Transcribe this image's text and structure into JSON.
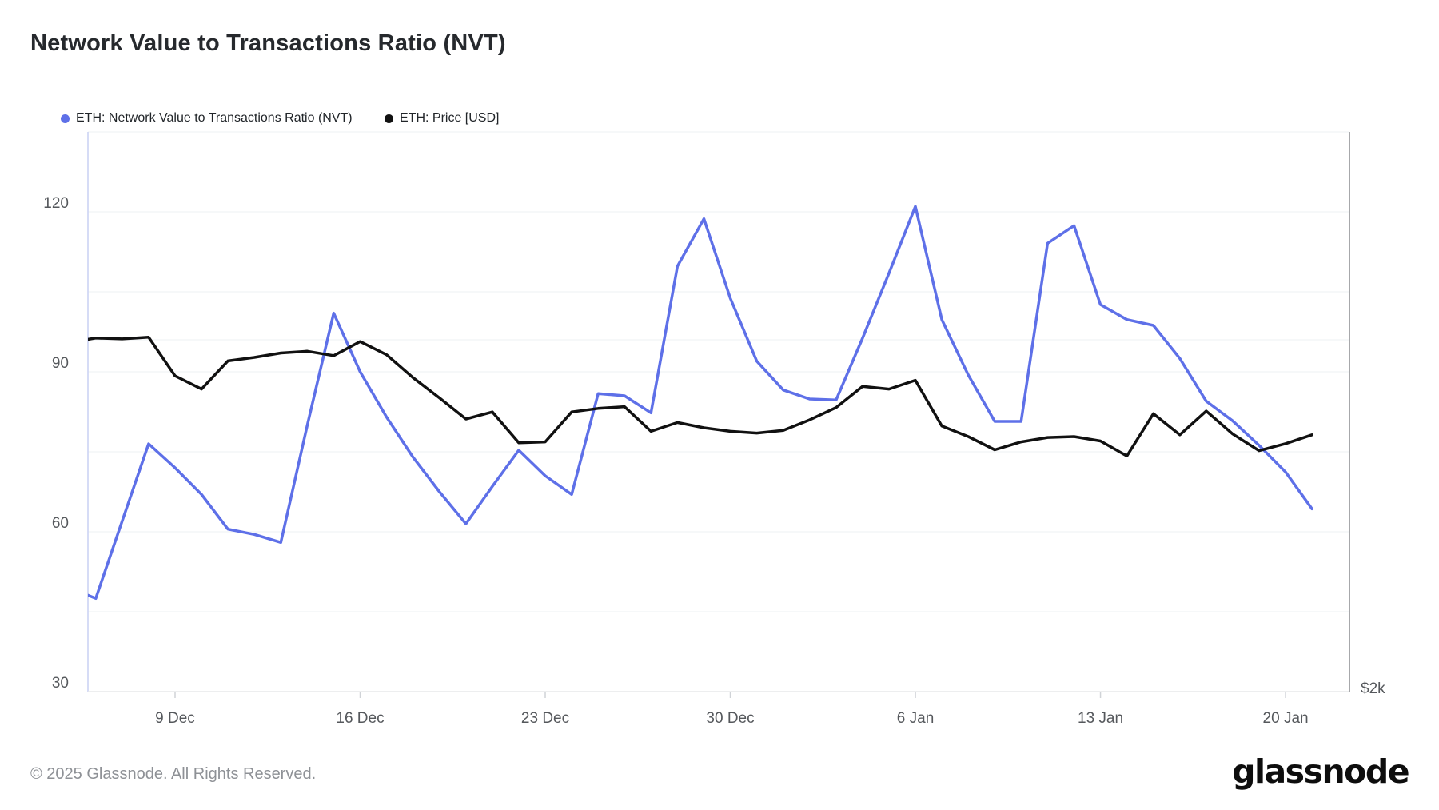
{
  "page": {
    "background": "#ffffff"
  },
  "header": {
    "title": "Network Value to Transactions Ratio (NVT)"
  },
  "footer": {
    "copyright": "© 2025 Glassnode. All Rights Reserved.",
    "brand": "glassnode"
  },
  "colors": {
    "nvt_blue": "#5e70e8",
    "price_black": "#111111",
    "gridline": "#eef0f3",
    "axis_text": "#55585c",
    "left_axis_line": "#c9d1f4",
    "bottom_axis_line": "#e7e8ea",
    "right_axis_line": "#8a8c8f",
    "tick_mark": "#d0d3d7"
  },
  "chart_data": {
    "type": "line",
    "title": "Network Value to Transactions Ratio (NVT)",
    "legend_position": "top-left",
    "grid": true,
    "dates": [
      "5 Dec",
      "6 Dec",
      "7 Dec",
      "8 Dec",
      "9 Dec",
      "10 Dec",
      "11 Dec",
      "12 Dec",
      "13 Dec",
      "14 Dec",
      "15 Dec",
      "16 Dec",
      "17 Dec",
      "18 Dec",
      "19 Dec",
      "20 Dec",
      "21 Dec",
      "22 Dec",
      "23 Dec",
      "24 Dec",
      "25 Dec",
      "26 Dec",
      "27 Dec",
      "28 Dec",
      "29 Dec",
      "30 Dec",
      "31 Dec",
      "1 Jan",
      "2 Jan",
      "3 Jan",
      "4 Jan",
      "5 Jan",
      "6 Jan",
      "7 Jan",
      "8 Jan",
      "9 Jan",
      "10 Jan",
      "11 Jan",
      "12 Jan",
      "13 Jan",
      "14 Jan",
      "15 Jan",
      "16 Jan",
      "17 Jan",
      "18 Jan",
      "19 Jan",
      "20 Jan",
      "21 Jan"
    ],
    "x_tick_labels": [
      "9 Dec",
      "16 Dec",
      "23 Dec",
      "30 Dec",
      "6 Jan",
      "13 Jan",
      "20 Jan"
    ],
    "x_tick_indices": [
      4,
      11,
      18,
      25,
      32,
      39,
      46
    ],
    "left_axis": {
      "min": 30,
      "max": 135,
      "grid_step": 15,
      "tick_labels": [
        "30",
        "60",
        "90",
        "120"
      ],
      "tick_values": [
        30,
        60,
        90,
        120
      ]
    },
    "right_axis": {
      "min": 2000,
      "max": 5182,
      "tick_labels": [
        "$2k"
      ],
      "tick_values": [
        2000
      ],
      "gridline_values": [
        4000
      ]
    },
    "series": [
      {
        "name": "ETH: Network Value to Transactions Ratio (NVT)",
        "color": "#5e70e8",
        "axis": "left",
        "values": [
          49.5,
          47.5,
          62,
          76.5,
          72,
          67,
          60.5,
          59.5,
          58,
          80,
          101,
          90,
          81.5,
          74,
          67.5,
          61.5,
          68.5,
          75.3,
          70.5,
          67,
          85.9,
          85.5,
          82.3,
          109.8,
          118.7,
          103.8,
          92,
          86.6,
          84.9,
          84.7,
          96.3,
          108.5,
          121,
          99.8,
          89.4,
          80.7,
          80.7,
          114.1,
          117.4,
          102.6,
          99.8,
          98.7,
          92.5,
          84.5,
          80.8,
          76.2,
          71.2,
          64.3
        ]
      },
      {
        "name": "ETH: Price [USD]",
        "color": "#111111",
        "axis": "right",
        "values": [
          3985,
          4010,
          4005,
          4015,
          3795,
          3720,
          3880,
          3900,
          3925,
          3935,
          3910,
          3990,
          3915,
          3785,
          3670,
          3550,
          3590,
          3415,
          3420,
          3590,
          3610,
          3620,
          3480,
          3530,
          3500,
          3480,
          3470,
          3485,
          3545,
          3615,
          3735,
          3720,
          3770,
          3510,
          3450,
          3375,
          3420,
          3445,
          3450,
          3425,
          3340,
          3580,
          3460,
          3595,
          3465,
          3370,
          3410,
          3460
        ]
      }
    ]
  }
}
